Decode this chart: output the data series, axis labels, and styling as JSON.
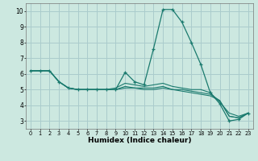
{
  "title": "",
  "xlabel": "Humidex (Indice chaleur)",
  "background_color": "#cce8e0",
  "grid_color": "#aacccc",
  "line_color": "#1a7a6e",
  "x_values": [
    0,
    1,
    2,
    3,
    4,
    5,
    6,
    7,
    8,
    9,
    10,
    11,
    12,
    13,
    14,
    15,
    16,
    17,
    18,
    19,
    20,
    21,
    22,
    23
  ],
  "series": [
    [
      6.2,
      6.2,
      6.2,
      5.5,
      5.1,
      5.0,
      5.0,
      5.0,
      5.0,
      5.0,
      6.1,
      5.5,
      5.3,
      7.6,
      10.1,
      10.1,
      9.3,
      8.0,
      6.6,
      4.8,
      4.1,
      3.0,
      3.1,
      3.5
    ],
    [
      6.2,
      6.2,
      6.2,
      5.5,
      5.1,
      5.0,
      5.0,
      5.0,
      5.0,
      5.1,
      5.4,
      5.3,
      5.2,
      5.3,
      5.4,
      5.2,
      5.1,
      5.0,
      5.0,
      4.8,
      4.2,
      3.5,
      3.3,
      3.5
    ],
    [
      6.2,
      6.2,
      6.2,
      5.5,
      5.1,
      5.0,
      5.0,
      5.0,
      5.0,
      5.0,
      5.2,
      5.1,
      5.1,
      5.1,
      5.2,
      5.0,
      5.0,
      4.9,
      4.8,
      4.7,
      4.3,
      3.3,
      3.2,
      3.5
    ],
    [
      6.2,
      6.2,
      6.2,
      5.5,
      5.1,
      5.0,
      5.0,
      5.0,
      5.0,
      5.0,
      5.1,
      5.1,
      5.0,
      5.0,
      5.1,
      5.0,
      4.9,
      4.8,
      4.7,
      4.6,
      4.3,
      3.3,
      3.2,
      3.5
    ]
  ],
  "ylim": [
    2.5,
    10.5
  ],
  "xlim": [
    -0.5,
    23.5
  ],
  "yticks": [
    3,
    4,
    5,
    6,
    7,
    8,
    9,
    10
  ],
  "xtick_labels": [
    "0",
    "1",
    "2",
    "3",
    "4",
    "5",
    "6",
    "7",
    "8",
    "9",
    "10",
    "11",
    "12",
    "13",
    "14",
    "15",
    "16",
    "17",
    "18",
    "19",
    "20",
    "21",
    "22",
    "23"
  ]
}
